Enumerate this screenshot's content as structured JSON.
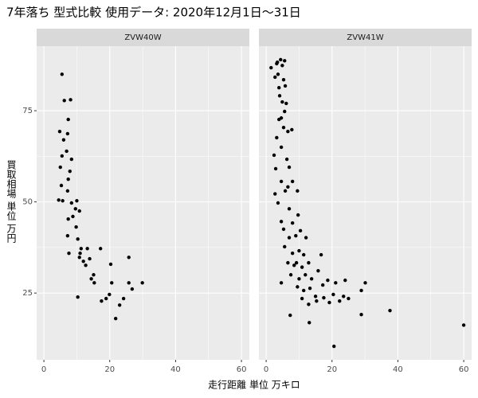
{
  "chart_data": {
    "type": "scatter",
    "title": "7年落ち 型式比較 使用データ: 2020年12月1日～31日",
    "x_label": "走行距離 単位 万キロ",
    "y_label": "買取相場 単位 万円",
    "xlim": [
      -2.2,
      62.4
    ],
    "ylim": [
      6.7,
      92.7
    ],
    "xticks": [
      0,
      20,
      40,
      60
    ],
    "yticks": [
      25,
      50,
      75
    ],
    "grid": true,
    "series": [
      {
        "name": "ZVW40W",
        "color": "#000000",
        "x": [
          5.5,
          6.2,
          8.1,
          7.4,
          4.8,
          6,
          7.2,
          5.5,
          6.9,
          8.4,
          5,
          7.9,
          7.4,
          5.3,
          7.2,
          4.5,
          5.7,
          8.4,
          10,
          9.6,
          8.8,
          7.4,
          10.8,
          9.8,
          7.2,
          10.3,
          7.6,
          11.3,
          13.2,
          10.8,
          12,
          13.9,
          12.7,
          15.1,
          14.4,
          15.3,
          17.2,
          20.3,
          20.6,
          25.8,
          25.8,
          29.9,
          26.8,
          19.9,
          18.9,
          24.2,
          23,
          17.5,
          10.3,
          21.8,
          11
        ],
        "values": [
          85,
          77.8,
          78,
          72.6,
          69.3,
          67,
          68.7,
          62.6,
          63.9,
          61.7,
          59.5,
          58.4,
          56.2,
          54.5,
          53,
          50.5,
          50.3,
          49.7,
          50.3,
          48.1,
          46,
          45.3,
          47.5,
          43.1,
          40.7,
          39.8,
          35.9,
          37.2,
          37.2,
          34.8,
          33.7,
          34.4,
          32.6,
          30,
          28.9,
          27.8,
          37.2,
          32.9,
          27.8,
          34.8,
          27.8,
          27.8,
          26.1,
          24.6,
          23.5,
          23.5,
          21.7,
          22.8,
          23.9,
          18,
          35.9
        ]
      },
      {
        "name": "ZVW41W",
        "color": "#000000",
        "x": [
          1.5,
          3.2,
          4.4,
          3.4,
          5.6,
          4.9,
          3.6,
          2.7,
          5.3,
          3.9,
          5.8,
          4.1,
          4.9,
          5.6,
          3.9,
          5.3,
          3.2,
          6.6,
          4.6,
          7.8,
          2.4,
          6.3,
          2.9,
          7,
          4.6,
          8,
          2.7,
          5.8,
          9.5,
          3.6,
          7,
          4.6,
          8,
          9.7,
          5.3,
          7,
          9,
          10.4,
          5.6,
          8,
          10,
          11.4,
          6.6,
          8.5,
          10.9,
          12.9,
          4.6,
          7.5,
          10,
          11.9,
          13.8,
          15.8,
          16.7,
          9.5,
          11.4,
          13.3,
          15,
          17.2,
          18.7,
          10.9,
          12.9,
          15.3,
          17.5,
          19.2,
          21.1,
          23.5,
          24,
          22.3,
          20.4,
          25,
          28.9,
          30.1,
          28.9,
          37.6,
          60,
          20.6,
          13.1,
          7.3,
          9.2,
          12.1,
          6.6,
          6.1,
          4.6
        ],
        "values": [
          86.8,
          87.9,
          89,
          88.3,
          88.7,
          87.4,
          85,
          84.2,
          83.5,
          81.3,
          81.8,
          79.1,
          77.4,
          74.8,
          72.6,
          70.4,
          67.6,
          69.3,
          65,
          69.8,
          62.8,
          61.7,
          59.1,
          59.5,
          55.6,
          55.6,
          52.2,
          53,
          53,
          49.7,
          48.1,
          44.6,
          44.2,
          46.4,
          42.5,
          40.2,
          40.7,
          42.1,
          37.7,
          35.9,
          36.6,
          35.5,
          33.3,
          32.6,
          32.1,
          33.3,
          27.8,
          30,
          28.9,
          30,
          28.9,
          31.1,
          35.5,
          26.7,
          25.7,
          26.3,
          24.1,
          27.2,
          28.5,
          23.5,
          21.9,
          22.8,
          23.7,
          22.4,
          27.8,
          24.1,
          28.5,
          22.8,
          24.6,
          23.5,
          25.7,
          27.8,
          19.1,
          20.2,
          16.2,
          10.4,
          16.9,
          18.9,
          33.3,
          40.2,
          54.1,
          77,
          73
        ]
      }
    ]
  }
}
